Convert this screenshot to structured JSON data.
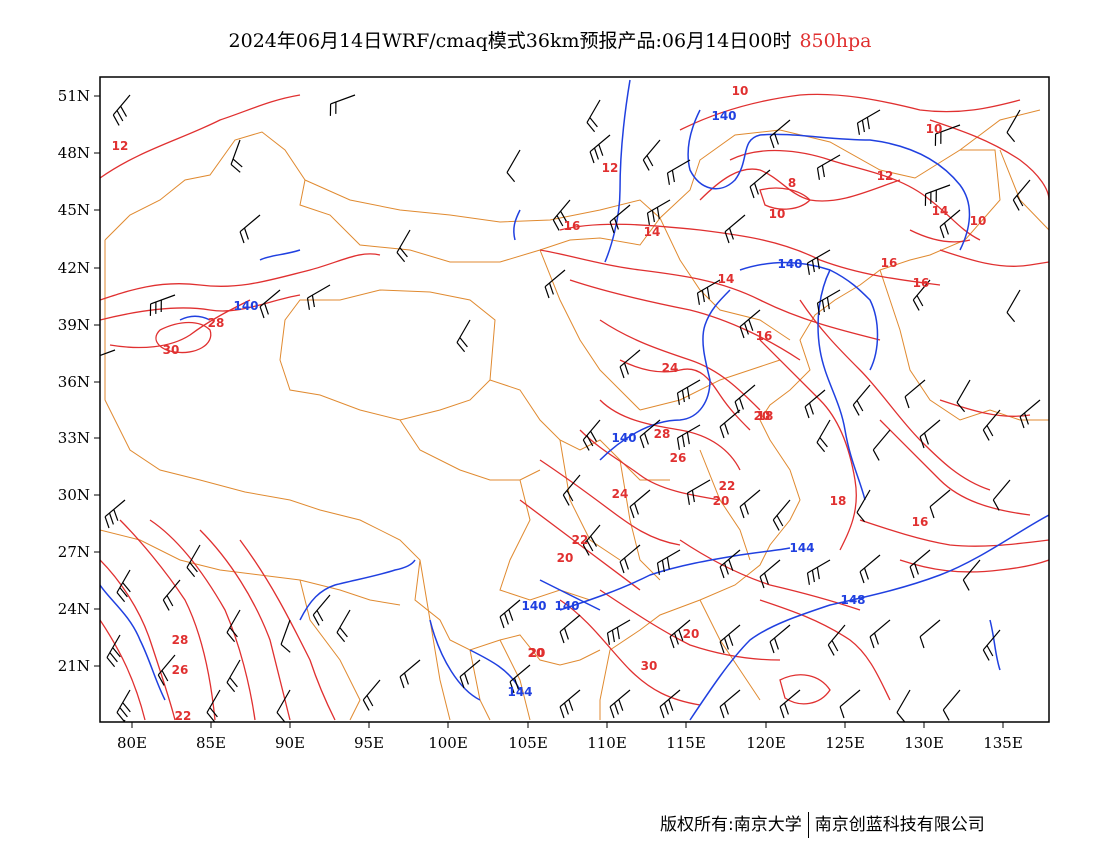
{
  "title": {
    "main": "2024年06月14日WRF/cmaq模式36km预报产品:06月14日00时",
    "level": "850hpa"
  },
  "colors": {
    "temperature_contour": "#e03030",
    "height_contour": "#2040e0",
    "border": "#e08a30",
    "wind_barb": "#000000"
  },
  "axes": {
    "lat_labels": [
      "51N",
      "48N",
      "45N",
      "42N",
      "39N",
      "36N",
      "33N",
      "30N",
      "27N",
      "24N",
      "21N"
    ],
    "lon_labels": [
      "80E",
      "85E",
      "90E",
      "95E",
      "100E",
      "105E",
      "110E",
      "115E",
      "120E",
      "125E",
      "130E",
      "135E"
    ]
  },
  "contour_labels": {
    "temperature": [
      "12",
      "10",
      "10",
      "10",
      "8",
      "12",
      "12",
      "14",
      "14",
      "16",
      "10",
      "16",
      "16",
      "14",
      "16",
      "28",
      "30",
      "24",
      "18",
      "20",
      "28",
      "26",
      "24",
      "22",
      "20",
      "18",
      "16",
      "22",
      "20",
      "20",
      "30",
      "28",
      "26",
      "22",
      "20",
      "20"
    ],
    "height": [
      "140",
      "140",
      "140",
      "140",
      "140",
      "144",
      "148",
      "140",
      "144"
    ]
  },
  "footer": {
    "left": "版权所有:南京大学",
    "right": "南京创蓝科技有限公司"
  }
}
